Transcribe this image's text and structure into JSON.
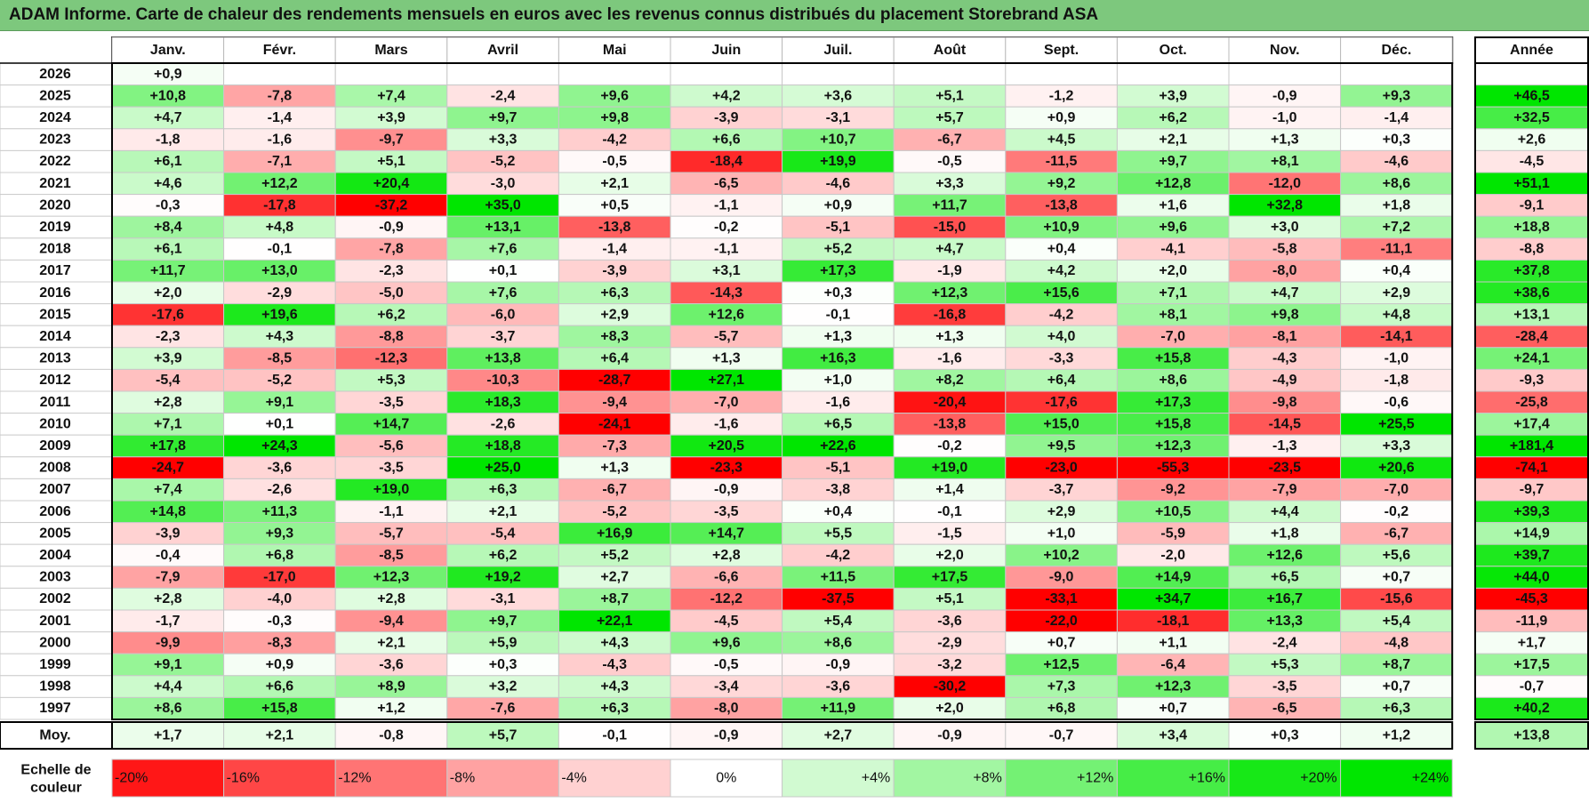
{
  "title": "ADAM Informe. Carte de chaleur des rendements mensuels en euros avec les revenus connus distribués du placement Storebrand ASA",
  "colors": {
    "negative": "#ff0000",
    "neutral": "#ffffff",
    "positive": "#00e600",
    "title_bg": "#7dc87d"
  },
  "chart_data": {
    "type": "heatmap",
    "title": "ADAM Informe. Carte de chaleur des rendements mensuels en euros avec les revenus connus distribués du placement Storebrand ASA",
    "months": [
      "Janv.",
      "Févr.",
      "Mars",
      "Avril",
      "Mai",
      "Juin",
      "Juil.",
      "Août",
      "Sept.",
      "Oct.",
      "Nov.",
      "Déc."
    ],
    "year_header": "Année",
    "avg_label": "Moy.",
    "rows": [
      {
        "year": "2026",
        "values": [
          "+0,9",
          "",
          "",
          "",
          "",
          "",
          "",
          "",
          "",
          "",
          "",
          ""
        ],
        "annual": ""
      },
      {
        "year": "2025",
        "values": [
          "+10,8",
          "-7,8",
          "+7,4",
          "-2,4",
          "+9,6",
          "+4,2",
          "+3,6",
          "+5,1",
          "-1,2",
          "+3,9",
          "-0,9",
          "+9,3"
        ],
        "annual": "+46,5"
      },
      {
        "year": "2024",
        "values": [
          "+4,7",
          "-1,4",
          "+3,9",
          "+9,7",
          "+9,8",
          "-3,9",
          "-3,1",
          "+5,7",
          "+0,9",
          "+6,2",
          "-1,0",
          "-1,4"
        ],
        "annual": "+32,5"
      },
      {
        "year": "2023",
        "values": [
          "-1,8",
          "-1,6",
          "-9,7",
          "+3,3",
          "-4,2",
          "+6,6",
          "+10,7",
          "-6,7",
          "+4,5",
          "+2,1",
          "+1,3",
          "+0,3"
        ],
        "annual": "+2,6"
      },
      {
        "year": "2022",
        "values": [
          "+6,1",
          "-7,1",
          "+5,1",
          "-5,2",
          "-0,5",
          "-18,4",
          "+19,9",
          "-0,5",
          "-11,5",
          "+9,7",
          "+8,1",
          "-4,6"
        ],
        "annual": "-4,5"
      },
      {
        "year": "2021",
        "values": [
          "+4,6",
          "+12,2",
          "+20,4",
          "-3,0",
          "+2,1",
          "-6,5",
          "-4,6",
          "+3,3",
          "+9,2",
          "+12,8",
          "-12,0",
          "+8,6"
        ],
        "annual": "+51,1"
      },
      {
        "year": "2020",
        "values": [
          "-0,3",
          "-17,8",
          "-37,2",
          "+35,0",
          "+0,5",
          "-1,1",
          "+0,9",
          "+11,7",
          "-13,8",
          "+1,6",
          "+32,8",
          "+1,8"
        ],
        "annual": "-9,1"
      },
      {
        "year": "2019",
        "values": [
          "+8,4",
          "+4,8",
          "-0,9",
          "+13,1",
          "-13,8",
          "-0,2",
          "-5,1",
          "-15,0",
          "+10,9",
          "+9,6",
          "+3,0",
          "+7,2"
        ],
        "annual": "+18,8"
      },
      {
        "year": "2018",
        "values": [
          "+6,1",
          "-0,1",
          "-7,8",
          "+7,6",
          "-1,4",
          "-1,1",
          "+5,2",
          "+4,7",
          "+0,4",
          "-4,1",
          "-5,8",
          "-11,1"
        ],
        "annual": "-8,8"
      },
      {
        "year": "2017",
        "values": [
          "+11,7",
          "+13,0",
          "-2,3",
          "+0,1",
          "-3,9",
          "+3,1",
          "+17,3",
          "-1,9",
          "+4,2",
          "+2,0",
          "-8,0",
          "+0,4"
        ],
        "annual": "+37,8"
      },
      {
        "year": "2016",
        "values": [
          "+2,0",
          "-2,9",
          "-5,0",
          "+7,6",
          "+6,3",
          "-14,3",
          "+0,3",
          "+12,3",
          "+15,6",
          "+7,1",
          "+4,7",
          "+2,9"
        ],
        "annual": "+38,6"
      },
      {
        "year": "2015",
        "values": [
          "-17,6",
          "+19,6",
          "+6,2",
          "-6,0",
          "+2,9",
          "+12,6",
          "-0,1",
          "-16,8",
          "-4,2",
          "+8,1",
          "+9,8",
          "+4,8"
        ],
        "annual": "+13,1"
      },
      {
        "year": "2014",
        "values": [
          "-2,3",
          "+4,3",
          "-8,8",
          "-3,7",
          "+8,3",
          "-5,7",
          "+1,3",
          "+1,3",
          "+4,0",
          "-7,0",
          "-8,1",
          "-14,1"
        ],
        "annual": "-28,4"
      },
      {
        "year": "2013",
        "values": [
          "+3,9",
          "-8,5",
          "-12,3",
          "+13,8",
          "+6,4",
          "+1,3",
          "+16,3",
          "-1,6",
          "-3,3",
          "+15,8",
          "-4,3",
          "-1,0"
        ],
        "annual": "+24,1"
      },
      {
        "year": "2012",
        "values": [
          "-5,4",
          "-5,2",
          "+5,3",
          "-10,3",
          "-28,7",
          "+27,1",
          "+1,0",
          "+8,2",
          "+6,4",
          "+8,6",
          "-4,9",
          "-1,8"
        ],
        "annual": "-9,3"
      },
      {
        "year": "2011",
        "values": [
          "+2,8",
          "+9,1",
          "-3,5",
          "+18,3",
          "-9,4",
          "-7,0",
          "-1,6",
          "-20,4",
          "-17,6",
          "+17,3",
          "-9,8",
          "-0,6"
        ],
        "annual": "-25,8"
      },
      {
        "year": "2010",
        "values": [
          "+7,1",
          "+0,1",
          "+14,7",
          "-2,6",
          "-24,1",
          "-1,6",
          "+6,5",
          "-13,8",
          "+15,0",
          "+15,8",
          "-14,5",
          "+25,5"
        ],
        "annual": "+17,4"
      },
      {
        "year": "2009",
        "values": [
          "+17,8",
          "+24,3",
          "-5,6",
          "+18,8",
          "-7,3",
          "+20,5",
          "+22,6",
          "-0,2",
          "+9,5",
          "+12,3",
          "-1,3",
          "+3,3"
        ],
        "annual": "+181,4"
      },
      {
        "year": "2008",
        "values": [
          "-24,7",
          "-3,6",
          "-3,5",
          "+25,0",
          "+1,3",
          "-23,3",
          "-5,1",
          "+19,0",
          "-23,0",
          "-55,3",
          "-23,5",
          "+20,6"
        ],
        "annual": "-74,1"
      },
      {
        "year": "2007",
        "values": [
          "+7,4",
          "-2,6",
          "+19,0",
          "+6,3",
          "-6,7",
          "-0,9",
          "-3,8",
          "+1,4",
          "-3,7",
          "-9,2",
          "-7,9",
          "-7,0"
        ],
        "annual": "-9,7"
      },
      {
        "year": "2006",
        "values": [
          "+14,8",
          "+11,3",
          "-1,1",
          "+2,1",
          "-5,2",
          "-3,5",
          "+0,4",
          "-0,1",
          "+2,9",
          "+10,5",
          "+4,4",
          "-0,2"
        ],
        "annual": "+39,3"
      },
      {
        "year": "2005",
        "values": [
          "-3,9",
          "+9,3",
          "-5,7",
          "-5,4",
          "+16,9",
          "+14,7",
          "+5,5",
          "-1,5",
          "+1,0",
          "-5,9",
          "+1,8",
          "-6,7"
        ],
        "annual": "+14,9"
      },
      {
        "year": "2004",
        "values": [
          "-0,4",
          "+6,8",
          "-8,5",
          "+6,2",
          "+5,2",
          "+2,8",
          "-4,2",
          "+2,0",
          "+10,2",
          "-2,0",
          "+12,6",
          "+5,6"
        ],
        "annual": "+39,7"
      },
      {
        "year": "2003",
        "values": [
          "-7,9",
          "-17,0",
          "+12,3",
          "+19,2",
          "+2,7",
          "-6,6",
          "+11,5",
          "+17,5",
          "-9,0",
          "+14,9",
          "+6,5",
          "+0,7"
        ],
        "annual": "+44,0"
      },
      {
        "year": "2002",
        "values": [
          "+2,8",
          "-4,0",
          "+2,8",
          "-3,1",
          "+8,7",
          "-12,2",
          "-37,5",
          "+5,1",
          "-33,1",
          "+34,7",
          "+16,7",
          "-15,6"
        ],
        "annual": "-45,3"
      },
      {
        "year": "2001",
        "values": [
          "-1,7",
          "-0,3",
          "-9,4",
          "+9,7",
          "+22,1",
          "-4,5",
          "+5,4",
          "-3,6",
          "-22,0",
          "-18,1",
          "+13,3",
          "+5,4"
        ],
        "annual": "-11,9"
      },
      {
        "year": "2000",
        "values": [
          "-9,9",
          "-8,3",
          "+2,1",
          "+5,9",
          "+4,3",
          "+9,6",
          "+8,6",
          "-2,9",
          "+0,7",
          "+1,1",
          "-2,4",
          "-4,8"
        ],
        "annual": "+1,7"
      },
      {
        "year": "1999",
        "values": [
          "+9,1",
          "+0,9",
          "-3,6",
          "+0,3",
          "-4,3",
          "-0,5",
          "-0,9",
          "-3,2",
          "+12,5",
          "-6,4",
          "+5,3",
          "+8,7"
        ],
        "annual": "+17,5"
      },
      {
        "year": "1998",
        "values": [
          "+4,4",
          "+6,6",
          "+8,9",
          "+3,2",
          "+4,3",
          "-3,4",
          "-3,6",
          "-30,2",
          "+7,3",
          "+12,3",
          "-3,5",
          "+0,7"
        ],
        "annual": "-0,7"
      },
      {
        "year": "1997",
        "values": [
          "+8,6",
          "+15,8",
          "+1,2",
          "-7,6",
          "+6,3",
          "-8,0",
          "+11,9",
          "+2,0",
          "+6,8",
          "+0,7",
          "-6,5",
          "+6,3"
        ],
        "annual": "+40,2"
      }
    ],
    "averages": {
      "values": [
        "+1,7",
        "+2,1",
        "-0,8",
        "+5,7",
        "-0,1",
        "-0,9",
        "+2,7",
        "-0,9",
        "-0,7",
        "+3,4",
        "+0,3",
        "+1,2"
      ],
      "annual": "+13,8"
    },
    "scale": {
      "label_line1": "Echelle de",
      "label_line2": "couleur",
      "items": [
        "-20%",
        "-16%",
        "-12%",
        "-8%",
        "-4%",
        "0%",
        "+4%",
        "+8%",
        "+12%",
        "+16%",
        "+20%",
        "+24%"
      ]
    }
  }
}
